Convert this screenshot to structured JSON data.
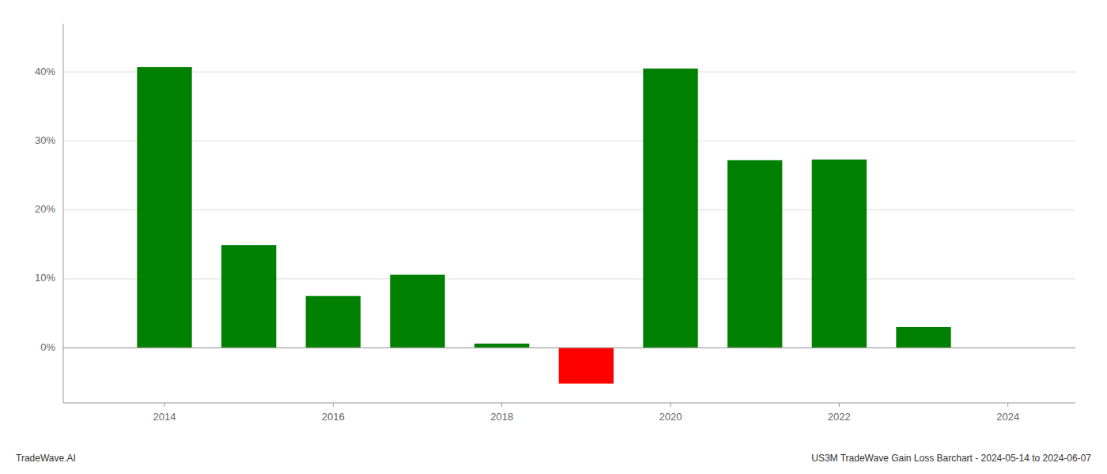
{
  "chart_data": {
    "type": "bar",
    "x": [
      2014,
      2015,
      2016,
      2017,
      2018,
      2019,
      2020,
      2021,
      2022,
      2023
    ],
    "values": [
      0.407,
      0.149,
      0.075,
      0.106,
      0.006,
      -0.052,
      0.405,
      0.272,
      0.273,
      0.03
    ],
    "colors": [
      "#008000",
      "#008000",
      "#008000",
      "#008000",
      "#008000",
      "#ff0000",
      "#008000",
      "#008000",
      "#008000",
      "#008000"
    ],
    "xlim": [
      2012.8,
      2024.8
    ],
    "xticks": [
      2014,
      2016,
      2018,
      2020,
      2022,
      2024
    ],
    "ylim": [
      -0.08,
      0.47
    ],
    "yticks": [
      {
        "value": 0.0,
        "label": "0%"
      },
      {
        "value": 0.1,
        "label": "10%"
      },
      {
        "value": 0.2,
        "label": "20%"
      },
      {
        "value": 0.3,
        "label": "30%"
      },
      {
        "value": 0.4,
        "label": "40%"
      }
    ],
    "grid": true,
    "annotations": [
      "TradeWave.AI",
      "US3M TradeWave Gain Loss Barchart - 2024-05-14 to 2024-06-07"
    ]
  }
}
